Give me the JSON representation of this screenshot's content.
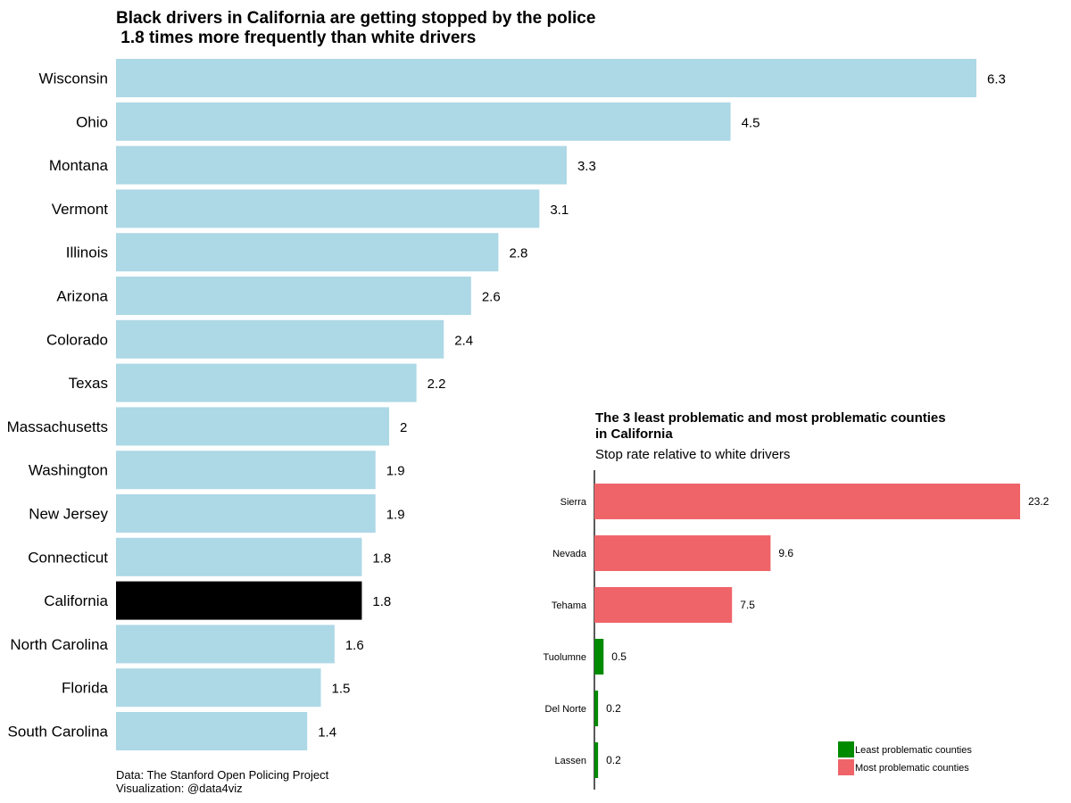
{
  "chart_data": [
    {
      "type": "bar",
      "orientation": "horizontal",
      "title_lines": [
        "Black drivers in California are getting stopped by the police",
        " 1.8 times more frequently than white drivers"
      ],
      "categories": [
        "Wisconsin",
        "Ohio",
        "Montana",
        "Vermont",
        "Illinois",
        "Arizona",
        "Colorado",
        "Texas",
        "Massachusetts",
        "Washington",
        "New Jersey",
        "Connecticut",
        "California",
        "North Carolina",
        "Florida",
        "South Carolina"
      ],
      "values": [
        6.3,
        4.5,
        3.3,
        3.1,
        2.8,
        2.6,
        2.4,
        2.2,
        2,
        1.9,
        1.9,
        1.8,
        1.8,
        1.6,
        1.5,
        1.4
      ],
      "value_labels": [
        "6.3",
        "4.5",
        "3.3",
        "3.1",
        "2.8",
        "2.6",
        "2.4",
        "2.2",
        "2",
        "1.9",
        "1.9",
        "1.8",
        "1.8",
        "1.6",
        "1.5",
        "1.4"
      ],
      "highlight_category": "California",
      "bar_color": "#add8e6",
      "highlight_color": "#000000",
      "xlim": [
        0,
        6.3
      ],
      "grid": false,
      "caption_lines": [
        "Data: The Stanford Open Policing Project",
        "Visualization: @data4viz"
      ]
    },
    {
      "type": "bar",
      "orientation": "horizontal",
      "title_lines": [
        "The 3 least problematic and most problematic counties",
        "in California"
      ],
      "subtitle": "Stop rate relative to white drivers",
      "categories": [
        "Sierra",
        "Nevada",
        "Tehama",
        "Tuolumne",
        "Del Norte",
        "Lassen"
      ],
      "values": [
        23.2,
        9.6,
        7.5,
        0.5,
        0.2,
        0.2
      ],
      "value_labels": [
        "23.2",
        "9.6",
        "7.5",
        "0.5",
        "0.2",
        "0.2"
      ],
      "groups": [
        "most",
        "most",
        "most",
        "least",
        "least",
        "least"
      ],
      "xlim": [
        0,
        23.2
      ],
      "grid": false,
      "legend": {
        "placement": "bottom-right",
        "items": [
          {
            "key": "least",
            "label": "Least problematic counties",
            "color": "#008a00"
          },
          {
            "key": "most",
            "label": "Most problematic counties",
            "color": "#ef6469"
          }
        ]
      }
    }
  ]
}
